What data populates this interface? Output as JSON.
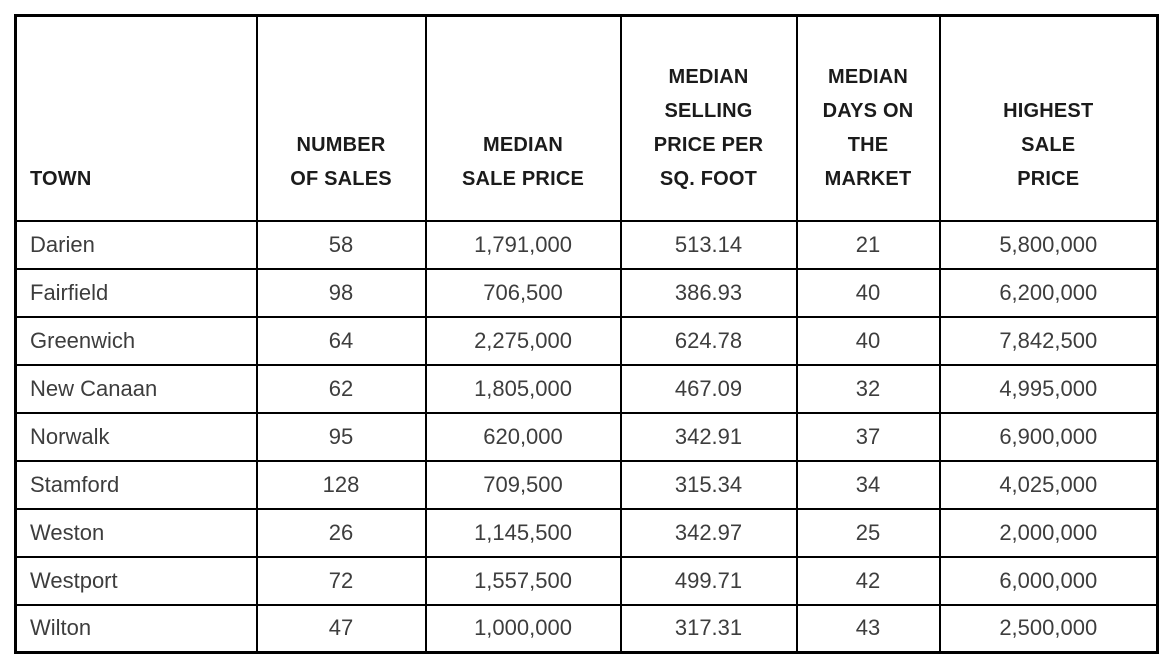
{
  "chart_data": {
    "type": "table",
    "title": "",
    "columns": [
      "TOWN",
      "NUMBER\nOF SALES",
      "MEDIAN\nSALE PRICE",
      "MEDIAN\nSELLING\nPRICE PER\nSQ. FOOT",
      "MEDIAN\nDAYS ON\nTHE\nMARKET",
      "HIGHEST\nSALE\nPRICE"
    ],
    "rows": [
      [
        "Darien",
        "58",
        "1,791,000",
        "513.14",
        "21",
        "5,800,000"
      ],
      [
        "Fairfield",
        "98",
        "706,500",
        "386.93",
        "40",
        "6,200,000"
      ],
      [
        "Greenwich",
        "64",
        "2,275,000",
        "624.78",
        "40",
        "7,842,500"
      ],
      [
        "New Canaan",
        "62",
        "1,805,000",
        "467.09",
        "32",
        "4,995,000"
      ],
      [
        "Norwalk",
        "95",
        "620,000",
        "342.91",
        "37",
        "6,900,000"
      ],
      [
        "Stamford",
        "128",
        "709,500",
        "315.34",
        "34",
        "4,025,000"
      ],
      [
        "Weston",
        "26",
        "1,145,500",
        "342.97",
        "25",
        "2,000,000"
      ],
      [
        "Westport",
        "72",
        "1,557,500",
        "499.71",
        "42",
        "6,000,000"
      ],
      [
        "Wilton",
        "47",
        "1,000,000",
        "317.31",
        "43",
        "2,500,000"
      ]
    ],
    "colors": {
      "border": "#000000",
      "header_text": "#1b1b1b",
      "cell_text": "#3d3d3d",
      "background": "#ffffff"
    },
    "layout": {
      "grid": "all-borders",
      "header_alignment": "bottom",
      "town_column_alignment": "left",
      "numeric_columns_alignment": "center"
    }
  }
}
